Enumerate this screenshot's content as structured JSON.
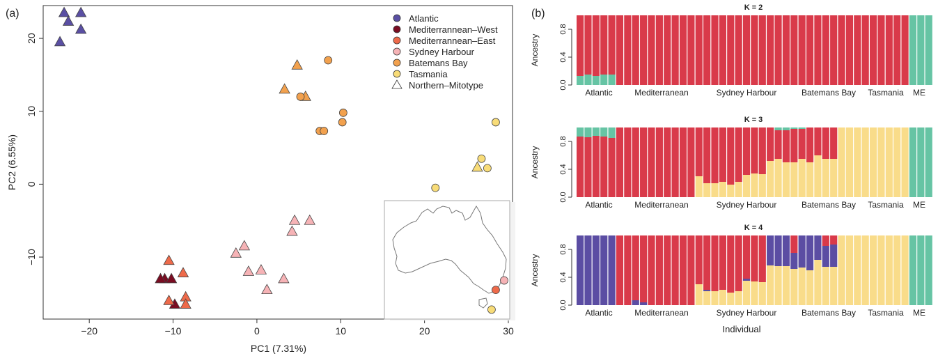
{
  "panel_a": {
    "label": "(a)",
    "xlabel": "PC1 (7.31%)",
    "ylabel": "PC2 (6.55%)",
    "x_ticks": [
      "−20",
      "−10",
      "0",
      "10",
      "20",
      "30"
    ],
    "y_ticks": [
      "−10",
      "0",
      "10",
      "20"
    ],
    "legend": [
      {
        "label": "Atlantic",
        "color": "#5a4fa3",
        "shape": "circle"
      },
      {
        "label": "Mediterrannean–West",
        "color": "#7a0d22",
        "shape": "circle"
      },
      {
        "label": "Mediterrannean–East",
        "color": "#ee6a4a",
        "shape": "circle"
      },
      {
        "label": "Sydney Harbour",
        "color": "#f6b3b6",
        "shape": "circle"
      },
      {
        "label": "Batemans Bay",
        "color": "#f2a14e",
        "shape": "circle"
      },
      {
        "label": "Tasmania",
        "color": "#f8dc78",
        "shape": "circle"
      },
      {
        "label": "Northern–Mitotype",
        "color": "#ffffff",
        "shape": "triangle"
      }
    ]
  },
  "panel_b": {
    "label": "(b)",
    "ylabel": "Ancestry",
    "xlabel": "Individual",
    "y_ticks": [
      "0.0",
      "0.4",
      "0.8"
    ],
    "group_labels": [
      "Atlantic",
      "Mediterranean",
      "Sydney Harbour",
      "Batemans Bay",
      "Tasmania",
      "ME"
    ],
    "colors": {
      "red": "#d93a4a",
      "green": "#66c4a4",
      "yellow": "#f9dc8a",
      "purple": "#5b4da3"
    }
  },
  "chart_data": [
    {
      "type": "scatter",
      "title": "",
      "xlabel": "PC1 (7.31%)",
      "ylabel": "PC2 (6.55%)",
      "xlim": [
        -25.5,
        30.5
      ],
      "ylim": [
        -18.5,
        24.5
      ],
      "legend_position": "top-right",
      "series": [
        {
          "name": "Atlantic",
          "color": "#5a4fa3",
          "points": [
            {
              "x": -23,
              "y": 23.5,
              "marker": "triangle"
            },
            {
              "x": -21,
              "y": 23.5,
              "marker": "triangle"
            },
            {
              "x": -22.5,
              "y": 22.3,
              "marker": "triangle"
            },
            {
              "x": -21,
              "y": 21.2,
              "marker": "triangle"
            },
            {
              "x": -23.5,
              "y": 19.5,
              "marker": "triangle"
            }
          ]
        },
        {
          "name": "Mediterrannean–West",
          "color": "#7a0d22",
          "points": [
            {
              "x": -11,
              "y": -13,
              "marker": "triangle"
            },
            {
              "x": -11.5,
              "y": -13,
              "marker": "triangle"
            },
            {
              "x": -10.2,
              "y": -13,
              "marker": "triangle"
            },
            {
              "x": -9.8,
              "y": -16.5,
              "marker": "triangle"
            }
          ]
        },
        {
          "name": "Mediterrannean–East",
          "color": "#ee6a4a",
          "points": [
            {
              "x": -10.5,
              "y": -10.5,
              "marker": "triangle"
            },
            {
              "x": -10.5,
              "y": -16,
              "marker": "triangle"
            },
            {
              "x": -8.8,
              "y": -12.2,
              "marker": "triangle"
            },
            {
              "x": -8.5,
              "y": -15.5,
              "marker": "triangle"
            },
            {
              "x": -8.5,
              "y": -16.5,
              "marker": "triangle"
            },
            {
              "x": 28.5,
              "y": -14.5,
              "marker": "circle"
            }
          ]
        },
        {
          "name": "Sydney Harbour",
          "color": "#f6b3b6",
          "points": [
            {
              "x": -2.5,
              "y": -9.5,
              "marker": "triangle"
            },
            {
              "x": -1.5,
              "y": -8.5,
              "marker": "triangle"
            },
            {
              "x": -1,
              "y": -12,
              "marker": "triangle"
            },
            {
              "x": 0.5,
              "y": -11.8,
              "marker": "triangle"
            },
            {
              "x": 1.2,
              "y": -14.5,
              "marker": "triangle"
            },
            {
              "x": 3.2,
              "y": -13,
              "marker": "triangle"
            },
            {
              "x": 4.2,
              "y": -6.5,
              "marker": "triangle"
            },
            {
              "x": 4.5,
              "y": -5,
              "marker": "triangle"
            },
            {
              "x": 6.3,
              "y": -5,
              "marker": "triangle"
            },
            {
              "x": 29.5,
              "y": -13.2,
              "marker": "circle"
            }
          ]
        },
        {
          "name": "Batemans Bay",
          "color": "#f2a14e",
          "points": [
            {
              "x": 3.3,
              "y": 13,
              "marker": "triangle"
            },
            {
              "x": 4.8,
              "y": 16.3,
              "marker": "triangle"
            },
            {
              "x": 5.8,
              "y": 12,
              "marker": "triangle"
            },
            {
              "x": 5.2,
              "y": 12,
              "marker": "circle"
            },
            {
              "x": 8.5,
              "y": 17,
              "marker": "circle"
            },
            {
              "x": 7.5,
              "y": 7.3,
              "marker": "circle"
            },
            {
              "x": 8,
              "y": 7.3,
              "marker": "circle"
            },
            {
              "x": 10.3,
              "y": 9.8,
              "marker": "circle"
            },
            {
              "x": 10.2,
              "y": 8.5,
              "marker": "circle"
            }
          ]
        },
        {
          "name": "Tasmania",
          "color": "#f8dc78",
          "points": [
            {
              "x": 28.5,
              "y": 8.5,
              "marker": "circle"
            },
            {
              "x": 26.8,
              "y": 3.5,
              "marker": "circle"
            },
            {
              "x": 26.3,
              "y": 2.3,
              "marker": "triangle"
            },
            {
              "x": 27.5,
              "y": 2.2,
              "marker": "circle"
            },
            {
              "x": 21.3,
              "y": -0.5,
              "marker": "circle"
            },
            {
              "x": 28,
              "y": -17.2,
              "marker": "circle"
            }
          ]
        }
      ]
    },
    {
      "type": "bar",
      "title": "K = 2",
      "ylabel": "Ancestry",
      "stacked": true,
      "ylim": [
        0,
        1
      ],
      "series_colors": [
        "#66c4a4",
        "#d93a4a"
      ],
      "values": [
        [
          0.13,
          0.87
        ],
        [
          0.15,
          0.85
        ],
        [
          0.13,
          0.87
        ],
        [
          0.15,
          0.85
        ],
        [
          0.15,
          0.85
        ],
        [
          0,
          1
        ],
        [
          0,
          1
        ],
        [
          0,
          1
        ],
        [
          0,
          1
        ],
        [
          0,
          1
        ],
        [
          0,
          1
        ],
        [
          0,
          1
        ],
        [
          0,
          1
        ],
        [
          0,
          1
        ],
        [
          0,
          1
        ],
        [
          0,
          1
        ],
        [
          0,
          1
        ],
        [
          0,
          1
        ],
        [
          0,
          1
        ],
        [
          0,
          1
        ],
        [
          0,
          1
        ],
        [
          0,
          1
        ],
        [
          0,
          1
        ],
        [
          0,
          1
        ],
        [
          0,
          1
        ],
        [
          0,
          1
        ],
        [
          0,
          1
        ],
        [
          0,
          1
        ],
        [
          0,
          1
        ],
        [
          0,
          1
        ],
        [
          0,
          1
        ],
        [
          0,
          1
        ],
        [
          0,
          1
        ],
        [
          0,
          1
        ],
        [
          0,
          1
        ],
        [
          0,
          1
        ],
        [
          0,
          1
        ],
        [
          0,
          1
        ],
        [
          0,
          1
        ],
        [
          0,
          1
        ],
        [
          0,
          1
        ],
        [
          0,
          1
        ],
        [
          1,
          0
        ],
        [
          1,
          0
        ],
        [
          1,
          0
        ]
      ]
    },
    {
      "type": "bar",
      "title": "K = 3",
      "ylabel": "Ancestry",
      "stacked": true,
      "ylim": [
        0,
        1
      ],
      "series_colors": [
        "#f9dc8a",
        "#d93a4a",
        "#66c4a4"
      ],
      "values": [
        [
          0,
          0.87,
          0.13
        ],
        [
          0,
          0.86,
          0.14
        ],
        [
          0,
          0.88,
          0.12
        ],
        [
          0,
          0.87,
          0.13
        ],
        [
          0,
          0.85,
          0.15
        ],
        [
          0,
          1,
          0
        ],
        [
          0,
          1,
          0
        ],
        [
          0,
          1,
          0
        ],
        [
          0,
          1,
          0
        ],
        [
          0,
          1,
          0
        ],
        [
          0,
          1,
          0
        ],
        [
          0,
          1,
          0
        ],
        [
          0,
          1,
          0
        ],
        [
          0,
          1,
          0
        ],
        [
          0,
          1,
          0
        ],
        [
          0.3,
          0.7,
          0
        ],
        [
          0.2,
          0.8,
          0
        ],
        [
          0.2,
          0.8,
          0
        ],
        [
          0.22,
          0.78,
          0
        ],
        [
          0.18,
          0.82,
          0
        ],
        [
          0.22,
          0.78,
          0
        ],
        [
          0.32,
          0.68,
          0
        ],
        [
          0.34,
          0.66,
          0
        ],
        [
          0.33,
          0.67,
          0
        ],
        [
          0.52,
          0.48,
          0
        ],
        [
          0.55,
          0.41,
          0.04
        ],
        [
          0.5,
          0.46,
          0.04
        ],
        [
          0.5,
          0.48,
          0.02
        ],
        [
          0.55,
          0.43,
          0.02
        ],
        [
          0.5,
          0.5,
          0
        ],
        [
          0.6,
          0.4,
          0
        ],
        [
          0.55,
          0.45,
          0
        ],
        [
          0.55,
          0.45,
          0
        ],
        [
          1,
          0,
          0
        ],
        [
          1,
          0,
          0
        ],
        [
          1,
          0,
          0
        ],
        [
          1,
          0,
          0
        ],
        [
          1,
          0,
          0
        ],
        [
          1,
          0,
          0
        ],
        [
          1,
          0,
          0
        ],
        [
          1,
          0,
          0
        ],
        [
          1,
          0,
          0
        ],
        [
          0,
          0,
          1
        ],
        [
          0,
          0,
          1
        ],
        [
          0,
          0,
          1
        ]
      ]
    },
    {
      "type": "bar",
      "title": "K = 4",
      "ylabel": "Ancestry",
      "xlabel": "Individual",
      "stacked": true,
      "ylim": [
        0,
        1
      ],
      "series_colors": [
        "#f9dc8a",
        "#5b4da3",
        "#d93a4a",
        "#66c4a4"
      ],
      "values": [
        [
          0,
          1,
          0,
          0
        ],
        [
          0,
          1,
          0,
          0
        ],
        [
          0,
          1,
          0,
          0
        ],
        [
          0,
          1,
          0,
          0
        ],
        [
          0,
          1,
          0,
          0
        ],
        [
          0,
          0,
          1,
          0
        ],
        [
          0,
          0,
          1,
          0
        ],
        [
          0,
          0.07,
          0.93,
          0
        ],
        [
          0,
          0.04,
          0.96,
          0
        ],
        [
          0,
          0,
          1,
          0
        ],
        [
          0,
          0,
          1,
          0
        ],
        [
          0,
          0,
          1,
          0
        ],
        [
          0,
          0,
          1,
          0
        ],
        [
          0,
          0,
          1,
          0
        ],
        [
          0,
          0,
          1,
          0
        ],
        [
          0.3,
          0,
          0.7,
          0
        ],
        [
          0.2,
          0.02,
          0.78,
          0
        ],
        [
          0.2,
          0,
          0.8,
          0
        ],
        [
          0.22,
          0,
          0.78,
          0
        ],
        [
          0.18,
          0,
          0.82,
          0
        ],
        [
          0.2,
          0,
          0.8,
          0
        ],
        [
          0.35,
          0.03,
          0.62,
          0
        ],
        [
          0.34,
          0,
          0.66,
          0
        ],
        [
          0.33,
          0,
          0.67,
          0
        ],
        [
          0.57,
          0.43,
          0,
          0
        ],
        [
          0.56,
          0.44,
          0,
          0
        ],
        [
          0.56,
          0.44,
          0,
          0
        ],
        [
          0.52,
          0.23,
          0.25,
          0
        ],
        [
          0.54,
          0.46,
          0,
          0
        ],
        [
          0.5,
          0.5,
          0,
          0
        ],
        [
          0.65,
          0.35,
          0,
          0
        ],
        [
          0.55,
          0.3,
          0.15,
          0
        ],
        [
          0.55,
          0.32,
          0.13,
          0
        ],
        [
          1,
          0,
          0,
          0
        ],
        [
          1,
          0,
          0,
          0
        ],
        [
          1,
          0,
          0,
          0
        ],
        [
          1,
          0,
          0,
          0
        ],
        [
          1,
          0,
          0,
          0
        ],
        [
          1,
          0,
          0,
          0
        ],
        [
          1,
          0,
          0,
          0
        ],
        [
          1,
          0,
          0,
          0
        ],
        [
          1,
          0,
          0,
          0
        ],
        [
          0,
          0,
          0,
          1
        ],
        [
          0,
          0,
          0,
          1
        ],
        [
          0,
          0,
          0,
          1
        ]
      ]
    }
  ]
}
